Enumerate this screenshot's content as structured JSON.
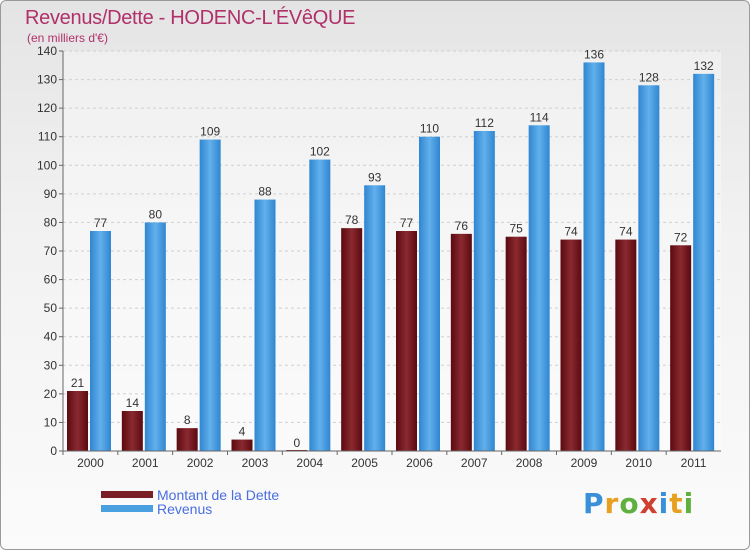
{
  "chart_data": {
    "type": "bar",
    "title": "Revenus/Dette - HODENC-L'ÉVêQUE",
    "subtitle": "(en milliers d'€)",
    "categories": [
      "2000",
      "2001",
      "2002",
      "2003",
      "2004",
      "2005",
      "2006",
      "2007",
      "2008",
      "2009",
      "2010",
      "2011"
    ],
    "series": [
      {
        "name": "Montant de la Dette",
        "color": "#7a1f24",
        "values": [
          21,
          14,
          8,
          4,
          0,
          78,
          77,
          76,
          75,
          74,
          74,
          72
        ]
      },
      {
        "name": "Revenus",
        "color": "#4a9fe0",
        "values": [
          77,
          80,
          109,
          88,
          102,
          93,
          110,
          112,
          114,
          136,
          128,
          132
        ]
      }
    ],
    "yticks": [
      0,
      10,
      20,
      30,
      40,
      50,
      60,
      70,
      80,
      90,
      100,
      110,
      120,
      130,
      140
    ],
    "ylim": [
      0,
      140
    ],
    "grid": true,
    "legend_position": "bottom-left"
  },
  "branding": {
    "logo_letters": [
      "P",
      "r",
      "o",
      "x",
      "i",
      "t",
      "i"
    ],
    "logo_colors": [
      "#3a8fd9",
      "#e8a020",
      "#60b040",
      "#d04030",
      "#3a8fd9",
      "#e8a020",
      "#60b040"
    ]
  }
}
